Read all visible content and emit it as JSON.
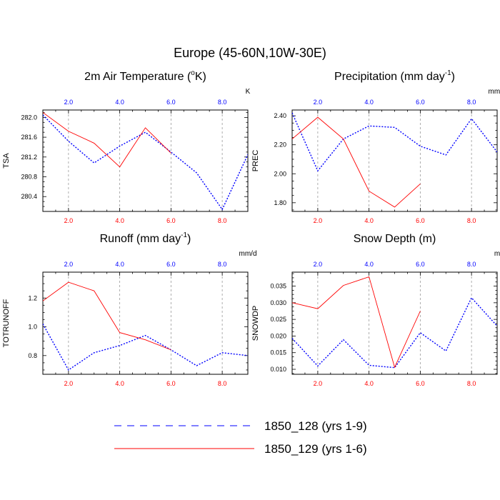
{
  "title": "Europe (45-60N,10W-30E)",
  "colors": {
    "series_1850_128": "#0000ff",
    "series_1850_129": "#ff0000",
    "grid": "#999999",
    "axis": "#000000"
  },
  "legend": {
    "placement": "bottom-center",
    "entries": [
      {
        "label": "1850_128 (yrs 1-9)",
        "color": "#0000ff",
        "style": "dashed"
      },
      {
        "label": "1850_129 (yrs 1-6)",
        "color": "#ff0000",
        "style": "solid"
      }
    ]
  },
  "chart_data": [
    {
      "type": "line",
      "title": "2m Air Temperature (",
      "title_sup": "o",
      "title_suffix": "K)",
      "ylabel": "TSA",
      "top_units": "K",
      "xlim": [
        1,
        9
      ],
      "ylim": [
        280.1,
        282.15
      ],
      "yticks": [
        280.4,
        280.8,
        281.2,
        281.6,
        282.0
      ],
      "ytick_labels": [
        "280.4",
        "280.8",
        "281.2",
        "281.6",
        "282.0"
      ],
      "xticks": [
        2,
        4,
        6,
        8
      ],
      "xtick_labels": [
        "2.0",
        "4.0",
        "6.0",
        "8.0"
      ],
      "grid": true,
      "series": [
        {
          "name": "1850_128 (yrs 1-9)",
          "x": [
            1,
            2,
            3,
            4,
            5,
            6,
            7,
            8,
            9
          ],
          "y": [
            282.05,
            281.52,
            281.08,
            281.42,
            281.7,
            281.3,
            280.88,
            280.14,
            281.25
          ]
        },
        {
          "name": "1850_129 (yrs 1-6)",
          "x": [
            1,
            2,
            3,
            4,
            5,
            6
          ],
          "y": [
            282.1,
            281.72,
            281.48,
            281.0,
            281.79,
            281.28
          ]
        }
      ]
    },
    {
      "type": "line",
      "title": "Precipitation (mm day",
      "title_sup": "-1",
      "title_suffix": ")",
      "ylabel": "PREC",
      "top_units": "mm/d",
      "xlim": [
        1,
        9
      ],
      "ylim": [
        1.74,
        2.44
      ],
      "yticks": [
        1.8,
        2.0,
        2.2,
        2.4
      ],
      "ytick_labels": [
        "1.80",
        "2.00",
        "2.20",
        "2.40"
      ],
      "xticks": [
        2,
        4,
        6,
        8
      ],
      "xtick_labels": [
        "2.0",
        "4.0",
        "6.0",
        "8.0"
      ],
      "grid": true,
      "series": [
        {
          "name": "1850_128 (yrs 1-9)",
          "x": [
            1,
            2,
            3,
            4,
            5,
            6,
            7,
            8,
            9
          ],
          "y": [
            2.42,
            2.02,
            2.24,
            2.33,
            2.32,
            2.19,
            2.13,
            2.38,
            2.15
          ]
        },
        {
          "name": "1850_129 (yrs 1-6)",
          "x": [
            1,
            2,
            3,
            4,
            5,
            6
          ],
          "y": [
            2.24,
            2.39,
            2.24,
            1.88,
            1.77,
            1.93
          ]
        }
      ]
    },
    {
      "type": "line",
      "title": "Runoff (mm day",
      "title_sup": "-1",
      "title_suffix": ")",
      "ylabel": "TOTRUNOFF",
      "top_units": "mm/d",
      "xlim": [
        1,
        9
      ],
      "ylim": [
        0.67,
        1.38
      ],
      "yticks": [
        0.8,
        1.0,
        1.2
      ],
      "ytick_labels": [
        "0.8",
        "1.0",
        "1.2"
      ],
      "xticks": [
        2,
        4,
        6,
        8
      ],
      "xtick_labels": [
        "2.0",
        "4.0",
        "6.0",
        "8.0"
      ],
      "grid": true,
      "series": [
        {
          "name": "1850_128 (yrs 1-9)",
          "x": [
            1,
            2,
            3,
            4,
            5,
            6,
            7,
            8,
            9
          ],
          "y": [
            1.02,
            0.7,
            0.82,
            0.87,
            0.94,
            0.84,
            0.73,
            0.82,
            0.8
          ]
        },
        {
          "name": "1850_129 (yrs 1-6)",
          "x": [
            1,
            2,
            3,
            4,
            5,
            6
          ],
          "y": [
            1.18,
            1.31,
            1.25,
            0.96,
            0.91,
            0.84
          ]
        }
      ]
    },
    {
      "type": "line",
      "title": "Snow Depth (m)",
      "title_sup": "",
      "title_suffix": "",
      "ylabel": "SNOWDP",
      "top_units": "m",
      "xlim": [
        1,
        9
      ],
      "ylim": [
        0.0085,
        0.0392
      ],
      "yticks": [
        0.01,
        0.015,
        0.02,
        0.025,
        0.03,
        0.035
      ],
      "ytick_labels": [
        "0.010",
        "0.015",
        "0.020",
        "0.025",
        "0.030",
        "0.035"
      ],
      "xticks": [
        2,
        4,
        6,
        8
      ],
      "xtick_labels": [
        "2.0",
        "4.0",
        "6.0",
        "8.0"
      ],
      "grid": true,
      "series": [
        {
          "name": "1850_128 (yrs 1-9)",
          "x": [
            1,
            2,
            3,
            4,
            5,
            6,
            7,
            8,
            9
          ],
          "y": [
            0.0193,
            0.011,
            0.0189,
            0.0112,
            0.0105,
            0.021,
            0.0155,
            0.0315,
            0.023
          ]
        },
        {
          "name": "1850_129 (yrs 1-6)",
          "x": [
            1,
            2,
            3,
            4,
            5,
            6
          ],
          "y": [
            0.03,
            0.0282,
            0.0352,
            0.0378,
            0.0106,
            0.0275
          ]
        }
      ]
    }
  ]
}
